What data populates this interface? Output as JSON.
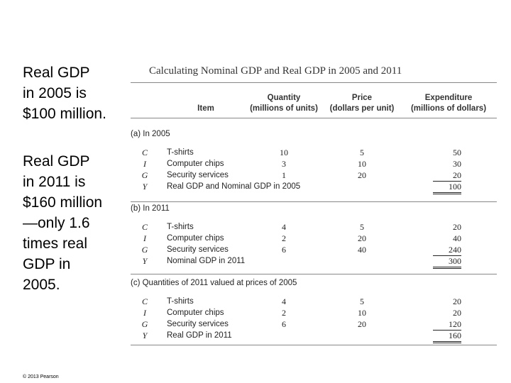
{
  "left_panel": {
    "para1": [
      "Real GDP",
      "in 2005 is",
      "$100 million."
    ],
    "para2": [
      "Real GDP",
      "in 2011 is",
      "$160 million",
      "—only 1.6",
      "times real",
      "GDP in",
      "2005."
    ],
    "copyright": "© 2013 Pearson"
  },
  "table": {
    "title": "Calculating Nominal GDP and Real GDP in 2005 and 2011",
    "headers": {
      "item": "Item",
      "quantity": [
        "Quantity",
        "(millions of units)"
      ],
      "price": [
        "Price",
        "(dollars per unit)"
      ],
      "expenditure": [
        "Expenditure",
        "(millions of dollars)"
      ]
    },
    "sections": [
      {
        "title": "(a) In 2005",
        "rows": [
          {
            "sym": "C",
            "item": "T-shirts",
            "qty": "10",
            "price": "5",
            "exp": "50"
          },
          {
            "sym": "I",
            "item": "Computer chips",
            "qty": "3",
            "price": "10",
            "exp": "30"
          },
          {
            "sym": "G",
            "item": "Security services",
            "qty": "1",
            "price": "20",
            "exp": "20"
          },
          {
            "sym": "Y",
            "item": "Real GDP and Nominal GDP in 2005",
            "qty": "",
            "price": "",
            "exp": "100"
          }
        ]
      },
      {
        "title": "(b) In 2011",
        "rows": [
          {
            "sym": "C",
            "item": "T-shirts",
            "qty": "4",
            "price": "5",
            "exp": "20"
          },
          {
            "sym": "I",
            "item": "Computer chips",
            "qty": "2",
            "price": "20",
            "exp": "40"
          },
          {
            "sym": "G",
            "item": "Security services",
            "qty": "6",
            "price": "40",
            "exp": "240"
          },
          {
            "sym": "Y",
            "item": "Nominal GDP in 2011",
            "qty": "",
            "price": "",
            "exp": "300"
          }
        ]
      },
      {
        "title": "(c) Quantities of 2011 valued at prices of 2005",
        "rows": [
          {
            "sym": "C",
            "item": "T-shirts",
            "qty": "4",
            "price": "5",
            "exp": "20"
          },
          {
            "sym": "I",
            "item": "Computer chips",
            "qty": "2",
            "price": "10",
            "exp": "20"
          },
          {
            "sym": "G",
            "item": "Security services",
            "qty": "6",
            "price": "20",
            "exp": "120"
          },
          {
            "sym": "Y",
            "item": "Real GDP in 2011",
            "qty": "",
            "price": "",
            "exp": "160"
          }
        ]
      }
    ]
  }
}
